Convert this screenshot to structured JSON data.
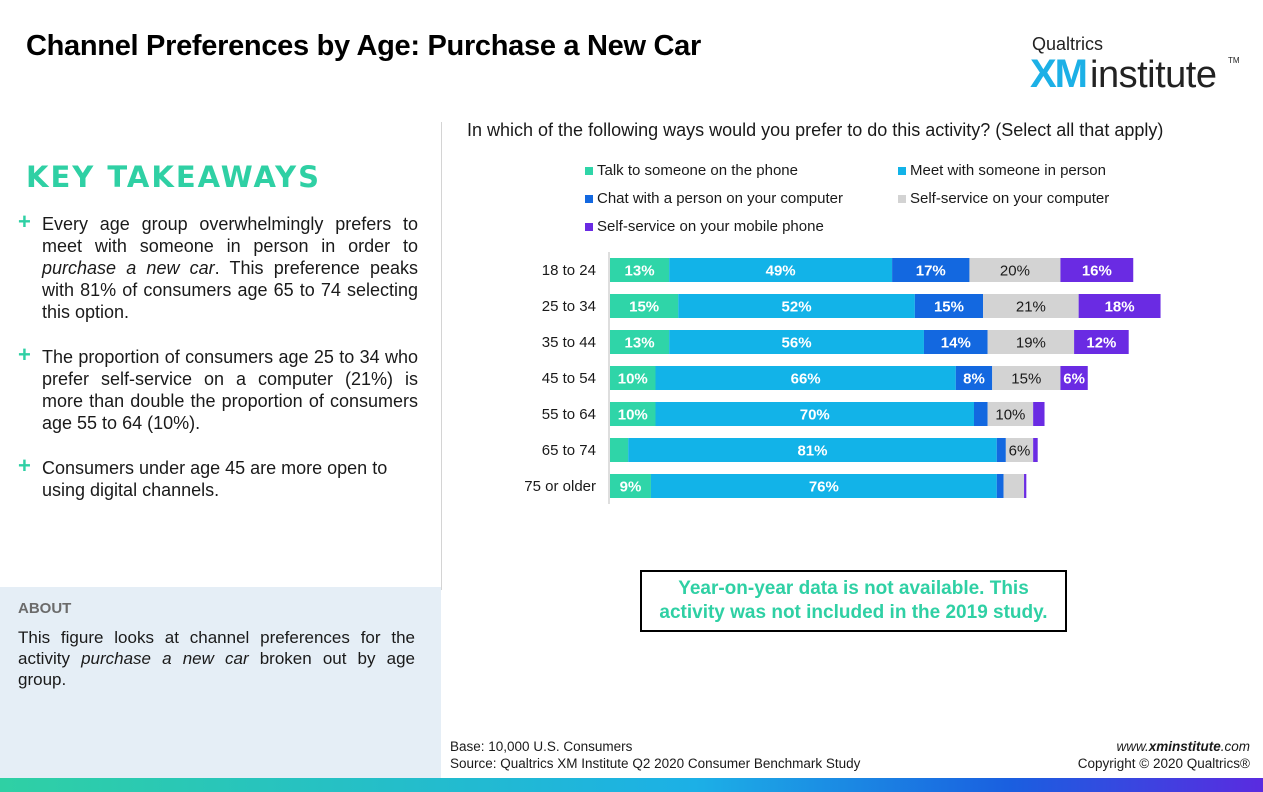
{
  "header": {
    "title": "Channel Preferences by Age: Purchase a New Car",
    "logo_top": "Qualtrics",
    "logo_xm": "XM",
    "logo_institute": "institute",
    "logo_tm": "TM"
  },
  "takeaways": {
    "heading": "KEY TAKEAWAYS",
    "items": [
      {
        "pre": "Every age group overwhelmingly prefers to meet with someone in person in order to ",
        "em": "purchase a new car",
        "post": ". This preference peaks with 81% of consumers age 65 to 74 selecting this option."
      },
      {
        "pre": "The proportion of consumers age 25 to 34 who prefer self-service on a computer (21%) is more than double the proportion of consumers age 55 to 64 (10%).",
        "em": "",
        "post": ""
      },
      {
        "pre": "Consumers under age 45 are more open to using digital channels.",
        "em": "",
        "post": ""
      }
    ]
  },
  "about": {
    "title": "ABOUT",
    "pre": "This figure looks at channel preferences for the activity ",
    "em": "purchase a new car",
    "post": " broken out by age group."
  },
  "question": "In which of the following ways would you prefer to do this activity? (Select all that apply)",
  "colors": {
    "phone": "#2fd5a8",
    "in_person": "#12b3e8",
    "chat": "#1368e0",
    "self_computer": "#d3d3d3",
    "self_mobile": "#6a2be3"
  },
  "chart_data": {
    "type": "bar",
    "orientation": "horizontal",
    "stacked": true,
    "categories": [
      "18 to 24",
      "25 to 34",
      "35 to 44",
      "45 to 54",
      "55 to 64",
      "65 to 74",
      "75 or older"
    ],
    "series": [
      {
        "name": "Talk to someone on the phone",
        "color": "#2fd5a8",
        "values": [
          13,
          15,
          13,
          10,
          10,
          4,
          9
        ],
        "labels": [
          "13%",
          "15%",
          "13%",
          "10%",
          "10%",
          "",
          "9%"
        ]
      },
      {
        "name": "Meet with someone in person",
        "color": "#12b3e8",
        "values": [
          49,
          52,
          56,
          66,
          70,
          81,
          76
        ],
        "labels": [
          "49%",
          "52%",
          "56%",
          "66%",
          "70%",
          "81%",
          "76%"
        ]
      },
      {
        "name": "Chat with a person on your computer",
        "color": "#1368e0",
        "values": [
          17,
          15,
          14,
          8,
          3,
          2,
          1.5
        ],
        "labels": [
          "17%",
          "15%",
          "14%",
          "8%",
          "",
          "",
          ""
        ]
      },
      {
        "name": "Self-service on your computer",
        "color": "#d3d3d3",
        "values": [
          20,
          21,
          19,
          15,
          10,
          6,
          4.5
        ],
        "labels": [
          "20%",
          "21%",
          "19%",
          "15%",
          "10%",
          "6%",
          ""
        ]
      },
      {
        "name": "Self-service on your mobile phone",
        "color": "#6a2be3",
        "values": [
          16,
          18,
          12,
          6,
          2.5,
          1,
          0.5
        ],
        "labels": [
          "16%",
          "18%",
          "12%",
          "6%",
          "",
          "",
          ""
        ]
      }
    ],
    "legend_position": "top",
    "grid": false
  },
  "notice": {
    "line1": "Year-on-year data is not available. This",
    "line2": "activity was not included in the 2019 study."
  },
  "footer": {
    "base": "Base: 10,000 U.S. Consumers",
    "source": "Source: Qualtrics XM Institute Q2 2020 Consumer Benchmark Study",
    "url_prefix": "www.",
    "url_bold": "xminstitute",
    "url_suffix": ".com",
    "copyright": "Copyright © 2020 Qualtrics®"
  }
}
